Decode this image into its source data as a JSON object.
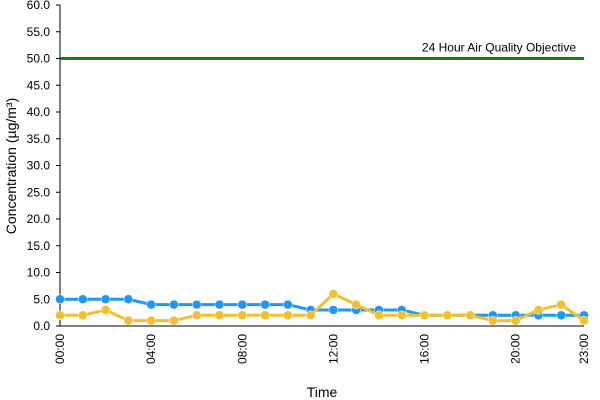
{
  "chart_data": {
    "type": "line",
    "y_label": "Concentration (µg/m³)",
    "x_label": "Time",
    "categories": [
      "00:00",
      null,
      null,
      null,
      "04:00",
      null,
      null,
      null,
      "08:00",
      null,
      null,
      null,
      "12:00",
      null,
      null,
      null,
      "16:00",
      null,
      null,
      null,
      "20:00",
      null,
      null,
      "23:00"
    ],
    "series": [
      {
        "color": "#2196f3",
        "values": [
          5,
          5,
          5,
          5,
          4,
          4,
          4,
          4,
          4,
          4,
          4,
          3,
          3,
          3,
          3,
          3,
          2,
          2,
          2,
          2,
          2,
          2,
          2,
          2
        ]
      },
      {
        "color": "#f0c030",
        "values": [
          2,
          2,
          3,
          1,
          1,
          1,
          2,
          2,
          2,
          2,
          2,
          2,
          6,
          4,
          2,
          2,
          2,
          2,
          2,
          1,
          1,
          3,
          4,
          1
        ]
      }
    ],
    "threshold": {
      "value": 50,
      "label": "24 Hour Air Quality Objective",
      "color": "#1e7a1e"
    },
    "ylim": [
      0,
      60
    ],
    "yticks": [
      {
        "value": 0,
        "label": "0.0"
      },
      {
        "value": 5,
        "label": "5.0"
      },
      {
        "value": 10,
        "label": "10.0"
      },
      {
        "value": 15,
        "label": "15.0"
      },
      {
        "value": 20,
        "label": "20.0"
      },
      {
        "value": 25,
        "label": "25.0"
      },
      {
        "value": 30,
        "label": "30.0"
      },
      {
        "value": 35,
        "label": "35.0"
      },
      {
        "value": 40,
        "label": "40.0"
      },
      {
        "value": 45,
        "label": "45.0"
      },
      {
        "value": 50,
        "label": "50.0"
      },
      {
        "value": 55,
        "label": "55.0"
      },
      {
        "value": 60,
        "label": "60.0"
      }
    ],
    "grid": false
  }
}
